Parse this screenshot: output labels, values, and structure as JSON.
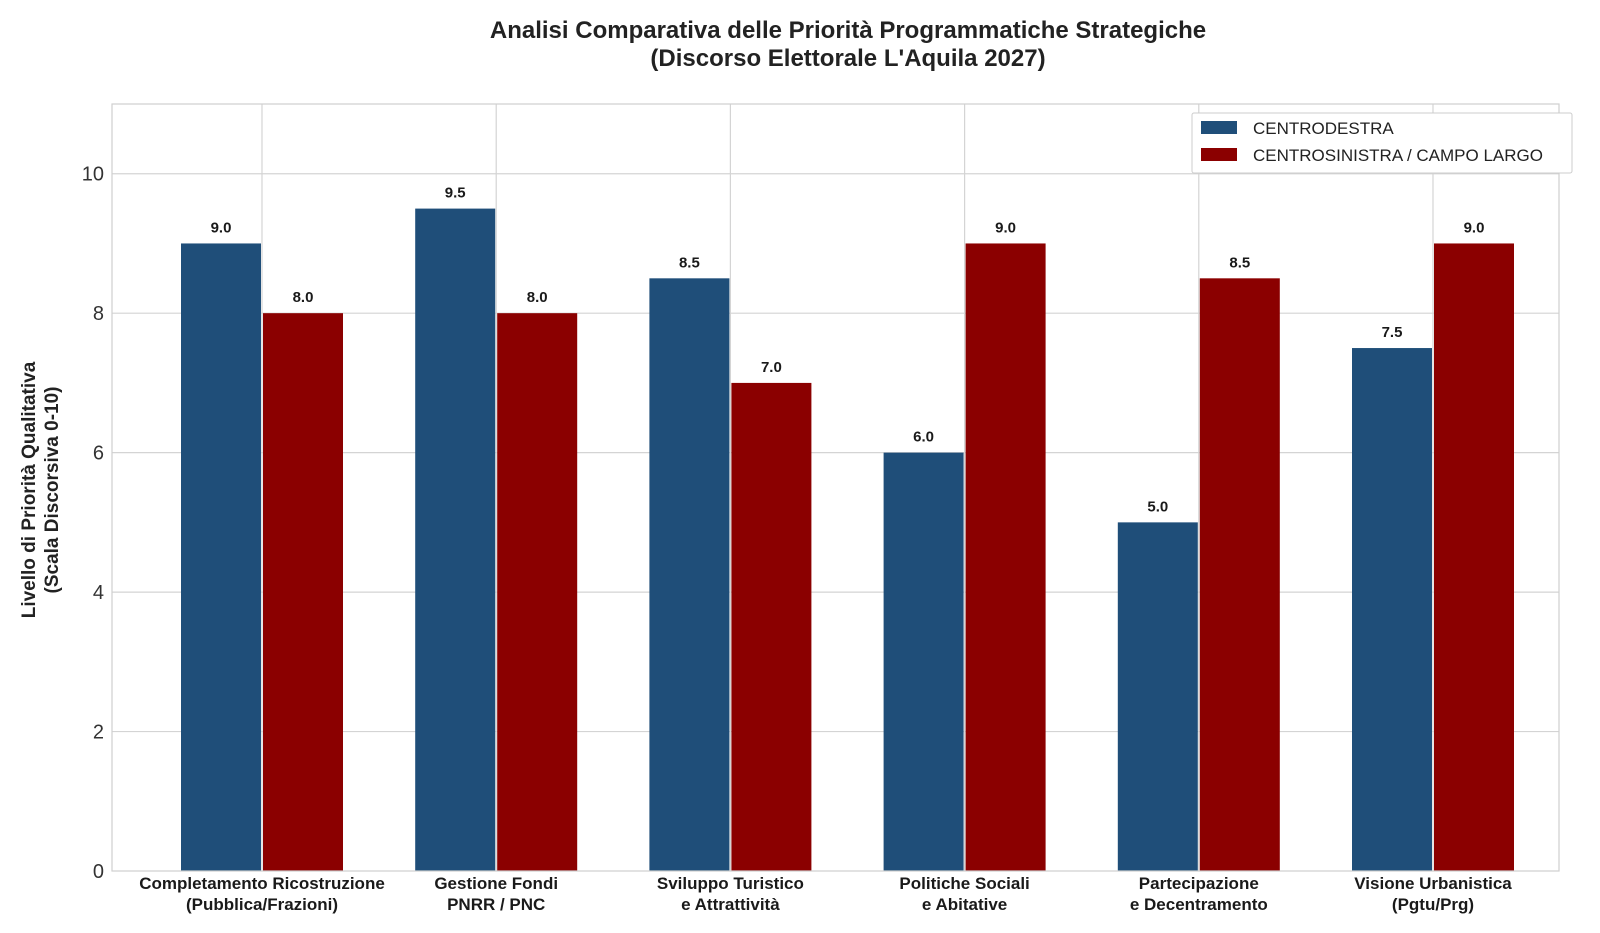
{
  "chart_data": {
    "type": "bar",
    "title": [
      "Analisi Comparativa delle Priorità Programmatiche Strategiche",
      "(Discorso Elettorale L'Aquila 2027)"
    ],
    "ylabel": [
      "Livello di Priorità Qualitativa",
      "(Scala Discorsiva 0-10)"
    ],
    "xlabel": "",
    "ylim": [
      0,
      11
    ],
    "yticks": [
      "0",
      "2",
      "4",
      "6",
      "8",
      "10"
    ],
    "grid": true,
    "legend_position": "top-right",
    "categories": [
      [
        "Completamento Ricostruzione",
        "(Pubblica/Frazioni)"
      ],
      [
        "Gestione Fondi",
        "PNRR / PNC"
      ],
      [
        "Sviluppo Turistico",
        "e Attrattività"
      ],
      [
        "Politiche Sociali",
        "e Abitative"
      ],
      [
        "Partecipazione",
        "e Decentramento"
      ],
      [
        "Visione Urbanistica",
        "(Pgtu/Prg)"
      ]
    ],
    "series": [
      {
        "name": "CENTRODESTRA",
        "color": "#1f4e79",
        "values": [
          9.0,
          9.5,
          8.5,
          6.0,
          5.0,
          7.5
        ],
        "labels": [
          "9.0",
          "9.5",
          "8.5",
          "6.0",
          "5.0",
          "7.5"
        ]
      },
      {
        "name": "CENTROSINISTRA / CAMPO LARGO",
        "color": "#8b0000",
        "values": [
          8.0,
          8.0,
          7.0,
          9.0,
          8.5,
          9.0
        ],
        "labels": [
          "8.0",
          "8.0",
          "7.0",
          "9.0",
          "8.5",
          "9.0"
        ]
      }
    ]
  }
}
